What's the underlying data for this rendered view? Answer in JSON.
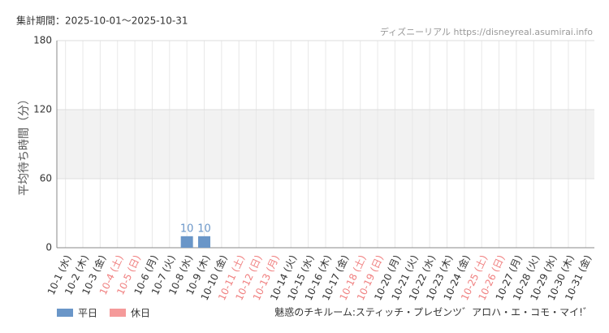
{
  "chart_data": {
    "type": "bar",
    "period": "集計期間：2025-10-01〜2025-10-31",
    "watermark": "ディズニーリアル https://disneyreal.asumirai.info",
    "y_label": "平均待ち時間（分）",
    "subtitle": "魅惑のチキルーム:スティッチ・プレゼンツ゛アロハ・エ・コモ・マイ!゛",
    "categories": [
      "10-1 (水)",
      "10-2 (木)",
      "10-3 (金)",
      "10-4 (土)",
      "10-5 (日)",
      "10-6 (月)",
      "10-7 (火)",
      "10-8 (水)",
      "10-9 (木)",
      "10-10 (金)",
      "10-11 (土)",
      "10-12 (日)",
      "10-13 (月)",
      "10-14 (火)",
      "10-15 (水)",
      "10-16 (木)",
      "10-17 (金)",
      "10-18 (土)",
      "10-19 (日)",
      "10-20 (月)",
      "10-21 (火)",
      "10-22 (水)",
      "10-23 (木)",
      "10-24 (金)",
      "10-25 (土)",
      "10-26 (日)",
      "10-27 (月)",
      "10-28 (火)",
      "10-29 (水)",
      "10-30 (木)",
      "10-31 (金)"
    ],
    "category_colors": [
      "#333",
      "#333",
      "#333",
      "#f08080",
      "#f08080",
      "#333",
      "#333",
      "#333",
      "#333",
      "#333",
      "#f08080",
      "#f08080",
      "#f08080",
      "#333",
      "#333",
      "#333",
      "#333",
      "#f08080",
      "#f08080",
      "#333",
      "#333",
      "#333",
      "#333",
      "#333",
      "#f08080",
      "#f08080",
      "#333",
      "#333",
      "#333",
      "#333",
      "#333"
    ],
    "series": [
      {
        "name": "平日",
        "color": "#6a96c8",
        "values": [
          null,
          null,
          null,
          null,
          null,
          null,
          null,
          10,
          10,
          null,
          null,
          null,
          null,
          null,
          null,
          null,
          null,
          null,
          null,
          null,
          null,
          null,
          null,
          null,
          null,
          null,
          null,
          null,
          null,
          null,
          null
        ]
      },
      {
        "name": "休日",
        "color": "#f59a9a",
        "values": [
          null,
          null,
          null,
          null,
          null,
          null,
          null,
          null,
          null,
          null,
          null,
          null,
          null,
          null,
          null,
          null,
          null,
          null,
          null,
          null,
          null,
          null,
          null,
          null,
          null,
          null,
          null,
          null,
          null,
          null,
          null
        ]
      }
    ],
    "ylim": [
      0,
      180
    ],
    "yticks": [
      0,
      60,
      120,
      180
    ],
    "band": [
      60,
      120
    ],
    "grid": true
  }
}
